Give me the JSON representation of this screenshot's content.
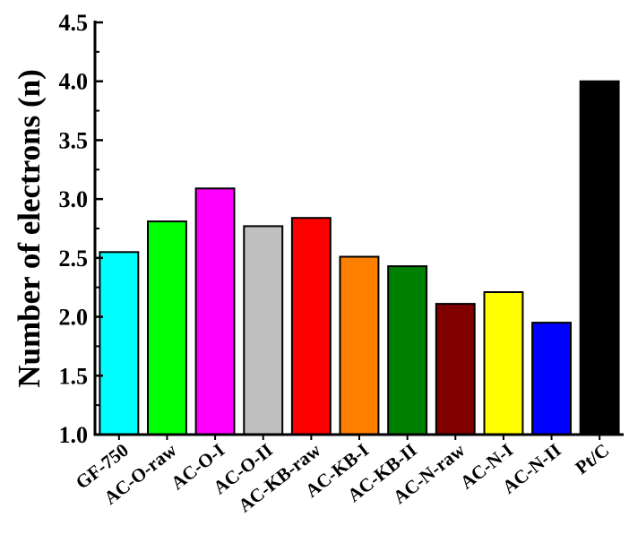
{
  "chart_data": {
    "type": "bar",
    "title": "",
    "xlabel": "",
    "ylabel": "Number of electrons (n)",
    "ylim": [
      1.0,
      4.5
    ],
    "yticks": [
      "1.0",
      "1.5",
      "2.0",
      "2.5",
      "3.0",
      "3.5",
      "4.0",
      "4.5"
    ],
    "grid": false,
    "categories": [
      "GF-750",
      "AC-O-raw",
      "AC-O-I",
      "AC-O-II",
      "AC-KB-raw",
      "AC-KB-I",
      "AC-KB-II",
      "AC-N-raw",
      "AC-N-I",
      "AC-N-II",
      "Pt/C"
    ],
    "values": [
      2.55,
      2.81,
      3.09,
      2.77,
      2.84,
      2.51,
      2.43,
      2.11,
      2.21,
      1.95,
      4.0
    ],
    "colors": [
      "#00FFFF",
      "#00FF00",
      "#FF00FF",
      "#C0C0C0",
      "#FF0000",
      "#FF8000",
      "#008000",
      "#800000",
      "#FFFF00",
      "#0000FF",
      "#000000"
    ]
  }
}
